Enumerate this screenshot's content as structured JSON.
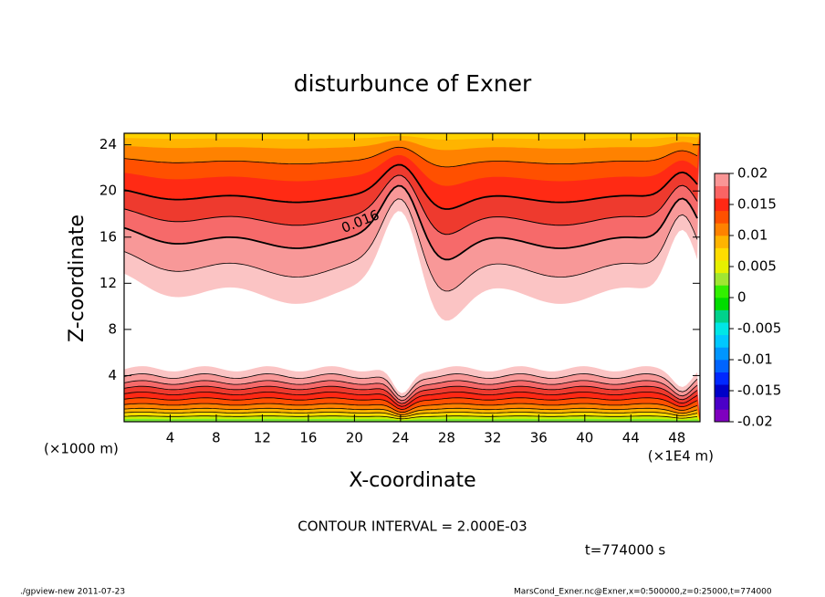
{
  "chart_data": {
    "type": "contour",
    "title": "disturbunce of Exner",
    "xlabel": "X-coordinate",
    "ylabel": "Z-coordinate",
    "x_unit_left": "(×1000 m)",
    "x_unit_right": "(×1E4 m)",
    "xlim": [
      0,
      50
    ],
    "xticks": [
      4,
      8,
      12,
      16,
      20,
      24,
      28,
      32,
      36,
      40,
      44,
      48
    ],
    "ylim": [
      0,
      25
    ],
    "yticks": [
      4,
      8,
      12,
      16,
      20,
      24
    ],
    "contour_label": "0.016",
    "contour_interval_text": "CONTOUR INTERVAL = 2.000E-03",
    "time_text": "t=774000 s",
    "colorbar": {
      "lim": [
        -0.02,
        0.02
      ],
      "ticks": [
        -0.02,
        -0.015,
        -0.01,
        -0.005,
        0,
        0.005,
        0.01,
        0.015,
        0.02
      ],
      "colors": [
        "#7f00bf",
        "#4b00c8",
        "#0000c8",
        "#0028ff",
        "#0064ff",
        "#0096ff",
        "#00c8ff",
        "#00e6e6",
        "#00d28c",
        "#00dc00",
        "#32f000",
        "#a0e632",
        "#e6f000",
        "#ffdc00",
        "#ffb400",
        "#ff8200",
        "#ff5000",
        "#ff2814",
        "#fa6464",
        "#fa9696"
      ]
    },
    "footer_left": "./gpview-new  2011-07-23",
    "footer_right": "MarsCond_Exner.nc@Exner,x=0:500000,z=0:25000,t=774000"
  }
}
